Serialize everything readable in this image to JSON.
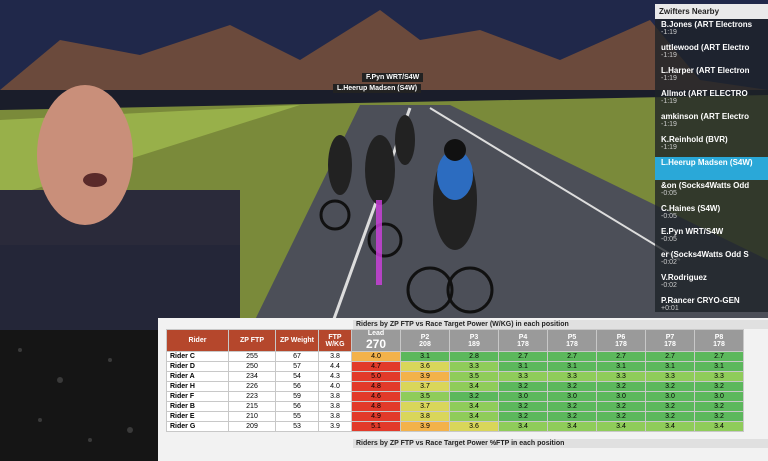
{
  "overlay": {
    "nearby_title": "Zwifters Nearby",
    "nearby": [
      {
        "name": "B.Jones (ART Electrons",
        "gap": "-1:19"
      },
      {
        "name": "uttlewood (ART Electro",
        "gap": "-1:19"
      },
      {
        "name": "L.Harper (ART Electron",
        "gap": "-1:19"
      },
      {
        "name": "Allmot (ART ELECTRO",
        "gap": "-1:19"
      },
      {
        "name": "amkinson (ART Electro",
        "gap": "-1:19"
      },
      {
        "name": "K.Reinhold (BVR)",
        "gap": "-1:19"
      },
      {
        "name": "L.Heerup Madsen (S4W)",
        "gap": ""
      },
      {
        "name": "&on (Socks4Watts Odd",
        "gap": "-0:05"
      },
      {
        "name": "C.Haines (S4W)",
        "gap": "-0:05"
      },
      {
        "name": "E.Pyn WRT/S4W",
        "gap": "-0:05"
      },
      {
        "name": "er (Socks4Watts Odd S",
        "gap": "-0:02"
      },
      {
        "name": "V.Rodriguez",
        "gap": "-0:02"
      },
      {
        "name": "P.Rancer CRYO-GEN",
        "gap": "+0:01"
      }
    ],
    "name_tags": [
      "F.Pyn WRT/S4W",
      "L.Heerup Madsen (S4W)"
    ]
  },
  "table": {
    "title": "Riders by ZP FTP vs Race Target Power (W/KG) in each position",
    "headers": [
      "Rider",
      "ZP FTP",
      "ZP Weight",
      "FTP W/KG",
      "Lead",
      "P2",
      "P3",
      "P4",
      "P5",
      "P6",
      "P7",
      "P8"
    ],
    "targets": [
      "270",
      "208",
      "189",
      "178",
      "178",
      "178",
      "178",
      "178"
    ],
    "rows": [
      [
        "Rider C",
        "255",
        "67",
        "3.8",
        "4.0",
        "3.1",
        "2.8",
        "2.7",
        "2.7",
        "2.7",
        "2.7",
        "2.7"
      ],
      [
        "Rider D",
        "250",
        "57",
        "4.4",
        "4.7",
        "3.6",
        "3.3",
        "3.1",
        "3.1",
        "3.1",
        "3.1",
        "3.1"
      ],
      [
        "Rider A",
        "234",
        "54",
        "4.3",
        "5.0",
        "3.9",
        "3.5",
        "3.3",
        "3.3",
        "3.3",
        "3.3",
        "3.3"
      ],
      [
        "Rider H",
        "226",
        "56",
        "4.0",
        "4.8",
        "3.7",
        "3.4",
        "3.2",
        "3.2",
        "3.2",
        "3.2",
        "3.2"
      ],
      [
        "Rider F",
        "223",
        "59",
        "3.8",
        "4.6",
        "3.5",
        "3.2",
        "3.0",
        "3.0",
        "3.0",
        "3.0",
        "3.0"
      ],
      [
        "Rider B",
        "215",
        "56",
        "3.8",
        "4.8",
        "3.7",
        "3.4",
        "3.2",
        "3.2",
        "3.2",
        "3.2",
        "3.2"
      ],
      [
        "Rider E",
        "210",
        "55",
        "3.8",
        "4.9",
        "3.8",
        "3.4",
        "3.2",
        "3.2",
        "3.2",
        "3.2",
        "3.2"
      ],
      [
        "Rider G",
        "209",
        "53",
        "3.9",
        "5.1",
        "3.9",
        "3.6",
        "3.4",
        "3.4",
        "3.4",
        "3.4",
        "3.4"
      ]
    ]
  },
  "table2": {
    "title": "Riders by ZP FTP vs Race Target Power %FTP in each position"
  }
}
